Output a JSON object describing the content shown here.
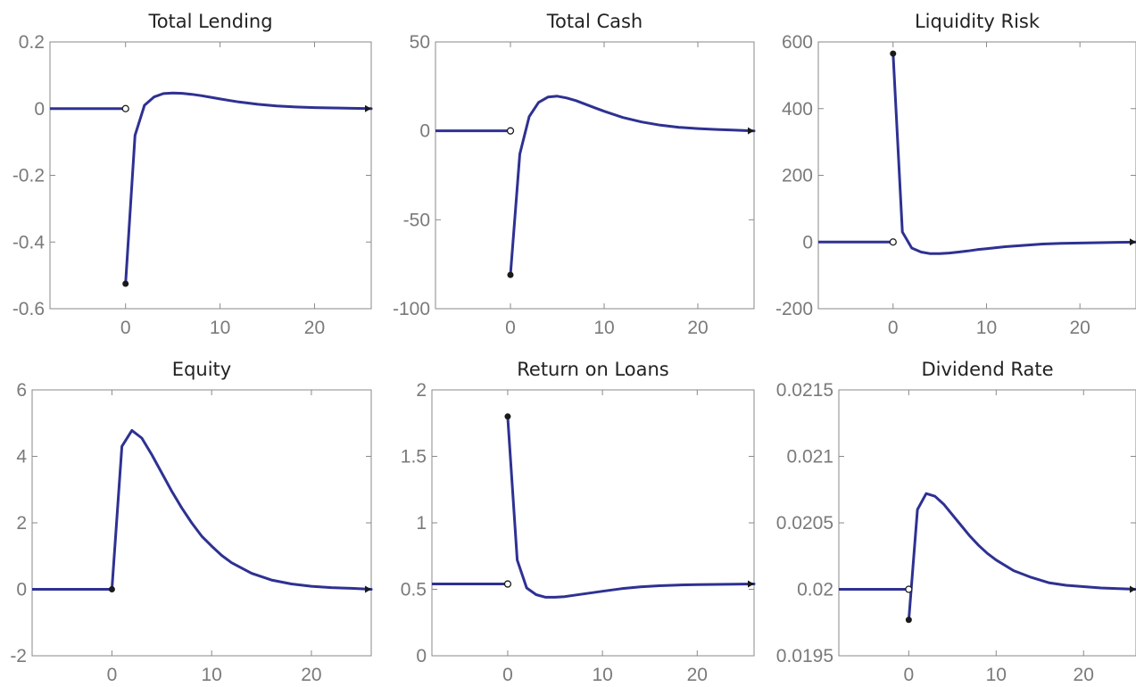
{
  "figure": {
    "line_color": "#2e3192",
    "marker_color": "#1a1a1a"
  },
  "chart_data": [
    {
      "type": "line",
      "title": "Total Lending",
      "xlim": [
        -8,
        26
      ],
      "ylim": [
        -0.6,
        0.2
      ],
      "xticks": [
        0,
        10,
        20
      ],
      "xtick_labels": [
        "0",
        "10",
        "20"
      ],
      "yticks": [
        -0.6,
        -0.4,
        -0.2,
        0,
        0.2
      ],
      "ytick_labels": [
        "-0.6",
        "-0.4",
        "-0.2",
        "0",
        "0.2"
      ],
      "steady_state": 0,
      "impact_value": -0.525,
      "x": [
        0,
        1,
        2,
        3,
        4,
        5,
        6,
        7,
        8,
        9,
        10,
        12,
        14,
        16,
        18,
        20,
        22,
        24,
        26
      ],
      "y": [
        -0.525,
        -0.08,
        0.01,
        0.035,
        0.045,
        0.047,
        0.046,
        0.043,
        0.039,
        0.034,
        0.029,
        0.02,
        0.013,
        0.008,
        0.005,
        0.003,
        0.002,
        0.001,
        0.0
      ]
    },
    {
      "type": "line",
      "title": "Total Cash",
      "xlim": [
        -8,
        26
      ],
      "ylim": [
        -100,
        50
      ],
      "xticks": [
        0,
        10,
        20
      ],
      "xtick_labels": [
        "0",
        "10",
        "20"
      ],
      "yticks": [
        -100,
        -50,
        0,
        50
      ],
      "ytick_labels": [
        "-100",
        "-50",
        "0",
        "50"
      ],
      "steady_state": 0,
      "impact_value": -81,
      "x": [
        0,
        1,
        2,
        3,
        4,
        5,
        6,
        7,
        8,
        9,
        10,
        12,
        14,
        16,
        18,
        20,
        22,
        24,
        26
      ],
      "y": [
        -81,
        -13,
        8,
        16,
        19,
        19.5,
        18.5,
        17,
        15,
        13,
        11,
        7.5,
        5,
        3.2,
        2,
        1.3,
        0.8,
        0.4,
        0
      ]
    },
    {
      "type": "line",
      "title": "Liquidity Risk",
      "xlim": [
        -8,
        26
      ],
      "ylim": [
        -200,
        600
      ],
      "xticks": [
        0,
        10,
        20
      ],
      "xtick_labels": [
        "0",
        "10",
        "20"
      ],
      "yticks": [
        -200,
        0,
        200,
        400,
        600
      ],
      "ytick_labels": [
        "-200",
        "0",
        "200",
        "400",
        "600"
      ],
      "steady_state": 0,
      "impact_value": 565,
      "x": [
        0,
        1,
        2,
        3,
        4,
        5,
        6,
        7,
        8,
        9,
        10,
        12,
        14,
        16,
        18,
        20,
        22,
        24,
        26
      ],
      "y": [
        565,
        30,
        -18,
        -30,
        -35,
        -35,
        -33,
        -30,
        -27,
        -23,
        -20,
        -14,
        -10,
        -6,
        -4,
        -3,
        -2,
        -1,
        0
      ]
    },
    {
      "type": "line",
      "title": "Equity",
      "xlim": [
        -8,
        26
      ],
      "ylim": [
        -2,
        6
      ],
      "xticks": [
        0,
        10,
        20
      ],
      "xtick_labels": [
        "0",
        "10",
        "20"
      ],
      "yticks": [
        -2,
        0,
        2,
        4,
        6
      ],
      "ytick_labels": [
        "-2",
        "0",
        "2",
        "4",
        "6"
      ],
      "steady_state": 0,
      "impact_value": 0,
      "x": [
        0,
        1,
        2,
        3,
        4,
        5,
        6,
        7,
        8,
        9,
        10,
        11,
        12,
        14,
        16,
        18,
        20,
        22,
        24,
        26
      ],
      "y": [
        0,
        4.3,
        4.78,
        4.55,
        4.05,
        3.5,
        2.95,
        2.45,
        2.0,
        1.6,
        1.3,
        1.02,
        0.8,
        0.48,
        0.28,
        0.16,
        0.09,
        0.05,
        0.03,
        0.0
      ]
    },
    {
      "type": "line",
      "title": "Return on Loans",
      "xlim": [
        -8,
        26
      ],
      "ylim": [
        0,
        2
      ],
      "xticks": [
        0,
        10,
        20
      ],
      "xtick_labels": [
        "0",
        "10",
        "20"
      ],
      "yticks": [
        0,
        0.5,
        1,
        1.5,
        2
      ],
      "ytick_labels": [
        "0",
        "0.5",
        "1",
        "1.5",
        "2"
      ],
      "steady_state": 0.54,
      "impact_value": 1.8,
      "x": [
        0,
        1,
        2,
        3,
        4,
        5,
        6,
        7,
        8,
        9,
        10,
        12,
        14,
        16,
        18,
        20,
        22,
        24,
        26
      ],
      "y": [
        1.8,
        0.72,
        0.51,
        0.46,
        0.44,
        0.44,
        0.445,
        0.455,
        0.465,
        0.475,
        0.485,
        0.505,
        0.518,
        0.527,
        0.532,
        0.535,
        0.537,
        0.539,
        0.54
      ]
    },
    {
      "type": "line",
      "title": "Dividend Rate",
      "xlim": [
        -8,
        26
      ],
      "ylim": [
        0.0195,
        0.0215
      ],
      "xticks": [
        0,
        10,
        20
      ],
      "xtick_labels": [
        "0",
        "10",
        "20"
      ],
      "yticks": [
        0.0195,
        0.02,
        0.0205,
        0.021,
        0.0215
      ],
      "ytick_labels": [
        "0.0195",
        "0.02",
        "0.0205",
        "0.021",
        "0.0215"
      ],
      "steady_state": 0.02,
      "impact_value": 0.01977,
      "x": [
        0,
        1,
        2,
        3,
        4,
        5,
        6,
        7,
        8,
        9,
        10,
        12,
        14,
        16,
        18,
        20,
        22,
        24,
        26
      ],
      "y": [
        0.01977,
        0.0206,
        0.02072,
        0.0207,
        0.02064,
        0.02056,
        0.02048,
        0.0204,
        0.02033,
        0.02027,
        0.02022,
        0.02014,
        0.02009,
        0.02005,
        0.02003,
        0.02002,
        0.02001,
        0.020005,
        0.02
      ]
    }
  ]
}
